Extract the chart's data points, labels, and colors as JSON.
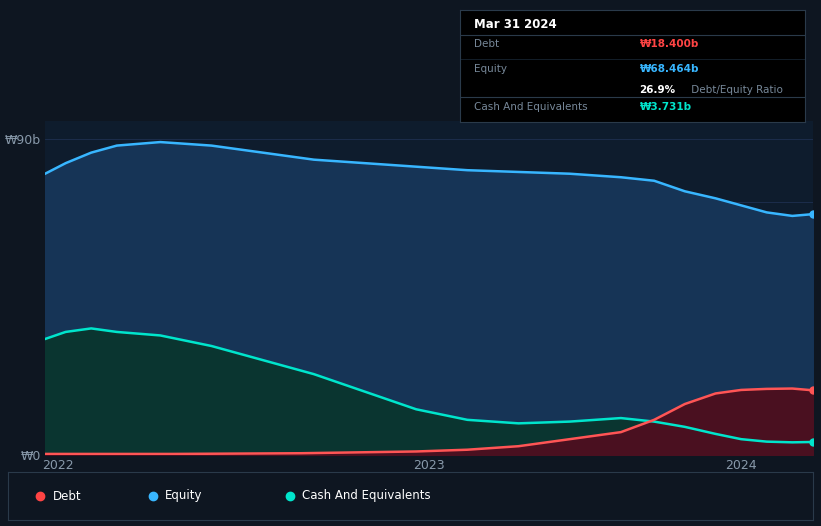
{
  "background_color": "#0e1621",
  "plot_bg_color": "#0e1c2d",
  "title": "Mar 31 2024",
  "tooltip": {
    "debt_label": "Debt",
    "debt_value": "₩18.400b",
    "equity_label": "Equity",
    "equity_value": "₩68.464b",
    "ratio_text": "26.9%",
    "ratio_suffix": " Debt/Equity Ratio",
    "cash_label": "Cash And Equivalents",
    "cash_value": "₩3.731b"
  },
  "ylabel_top": "₩90b",
  "ylabel_bottom": "₩0",
  "x_ticks": [
    "2022",
    "2023",
    "2024"
  ],
  "legend": [
    {
      "label": "Debt",
      "color": "#ff4444"
    },
    {
      "label": "Equity",
      "color": "#38b6ff"
    },
    {
      "label": "Cash And Equivalents",
      "color": "#00e5cc"
    }
  ],
  "equity_color": "#38b6ff",
  "equity_fill": "#163456",
  "debt_color": "#ff5555",
  "debt_fill": "#4a1020",
  "cash_color": "#00e5cc",
  "cash_fill": "#0a3530",
  "grid_color": "#1e3050",
  "equity_data": {
    "x": [
      0,
      0.08,
      0.18,
      0.28,
      0.45,
      0.65,
      0.85,
      1.05,
      1.25,
      1.45,
      1.65,
      1.85,
      2.05,
      2.25,
      2.38,
      2.5,
      2.62,
      2.72,
      2.82,
      2.92,
      3.0
    ],
    "y": [
      80,
      83,
      86,
      88,
      89,
      88,
      86,
      84,
      83,
      82,
      81,
      80.5,
      80,
      79,
      78,
      75,
      73,
      71,
      69,
      68,
      68.5
    ]
  },
  "cash_data": {
    "x": [
      0,
      0.08,
      0.18,
      0.28,
      0.45,
      0.65,
      0.85,
      1.05,
      1.25,
      1.45,
      1.65,
      1.85,
      2.05,
      2.25,
      2.38,
      2.5,
      2.62,
      2.72,
      2.82,
      2.92,
      3.0
    ],
    "y": [
      33,
      35,
      36,
      35,
      34,
      31,
      27,
      23,
      18,
      13,
      10,
      9,
      9.5,
      10.5,
      9.5,
      8,
      6,
      4.5,
      3.8,
      3.6,
      3.7
    ]
  },
  "debt_data": {
    "x": [
      0,
      0.5,
      1.0,
      1.45,
      1.65,
      1.85,
      2.05,
      2.25,
      2.38,
      2.5,
      2.62,
      2.72,
      2.82,
      2.92,
      3.0
    ],
    "y": [
      0.3,
      0.3,
      0.5,
      1.0,
      1.5,
      2.5,
      4.5,
      6.5,
      10.0,
      14.5,
      17.5,
      18.5,
      18.8,
      18.9,
      18.4
    ]
  },
  "xmin": 0,
  "xmax": 3.0,
  "ymin": 0,
  "ymax": 95,
  "x_tick_positions": [
    0.05,
    1.5,
    2.72
  ],
  "figsize": [
    8.21,
    5.26
  ],
  "dpi": 100
}
